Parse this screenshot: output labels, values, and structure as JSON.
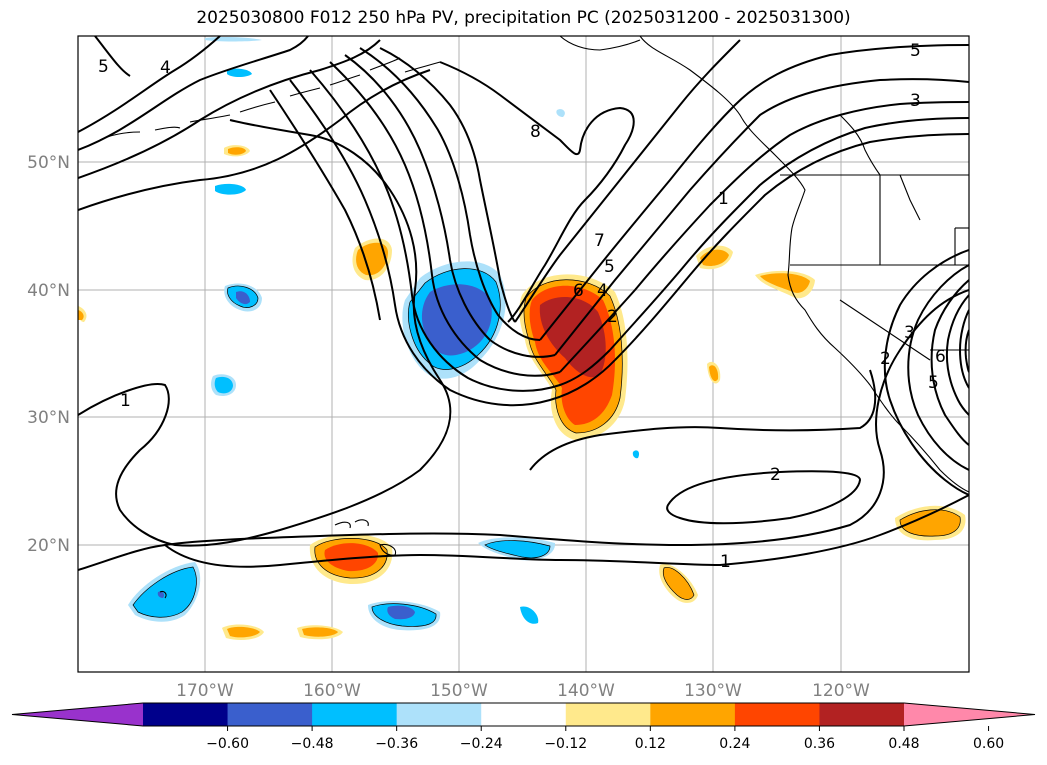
{
  "title": "2025030800 F012 250 hPa PV, precipitation PC (2025031200 - 2025031300)",
  "lat_labels": [
    "50°N",
    "40°N",
    "30°N",
    "20°N"
  ],
  "lon_labels": [
    "170°W",
    "160°W",
    "150°W",
    "140°W",
    "130°W",
    "120°W"
  ],
  "pv_contour_labels": [
    "5",
    "4",
    "8",
    "7",
    "6",
    "5",
    "4",
    "2",
    "1",
    "1",
    "2",
    "1",
    "5",
    "3",
    "2",
    "3",
    "6",
    "5"
  ],
  "colorbar": {
    "tick_labels": [
      "−0.60",
      "−0.48",
      "−0.36",
      "−0.24",
      "−0.12",
      "0.12",
      "0.24",
      "0.36",
      "0.48",
      "0.60"
    ],
    "colors": [
      "#9932CC",
      "#00008B",
      "#3A5FCD",
      "#00BFFF",
      "#ADE1FA",
      "#FFFFFF",
      "#FFE98C",
      "#FFA500",
      "#FF4500",
      "#B22222",
      "#FF88AA"
    ]
  },
  "colors": {
    "grid": "#b0b0b0",
    "contour": "#000000",
    "coast": "#000000"
  }
}
